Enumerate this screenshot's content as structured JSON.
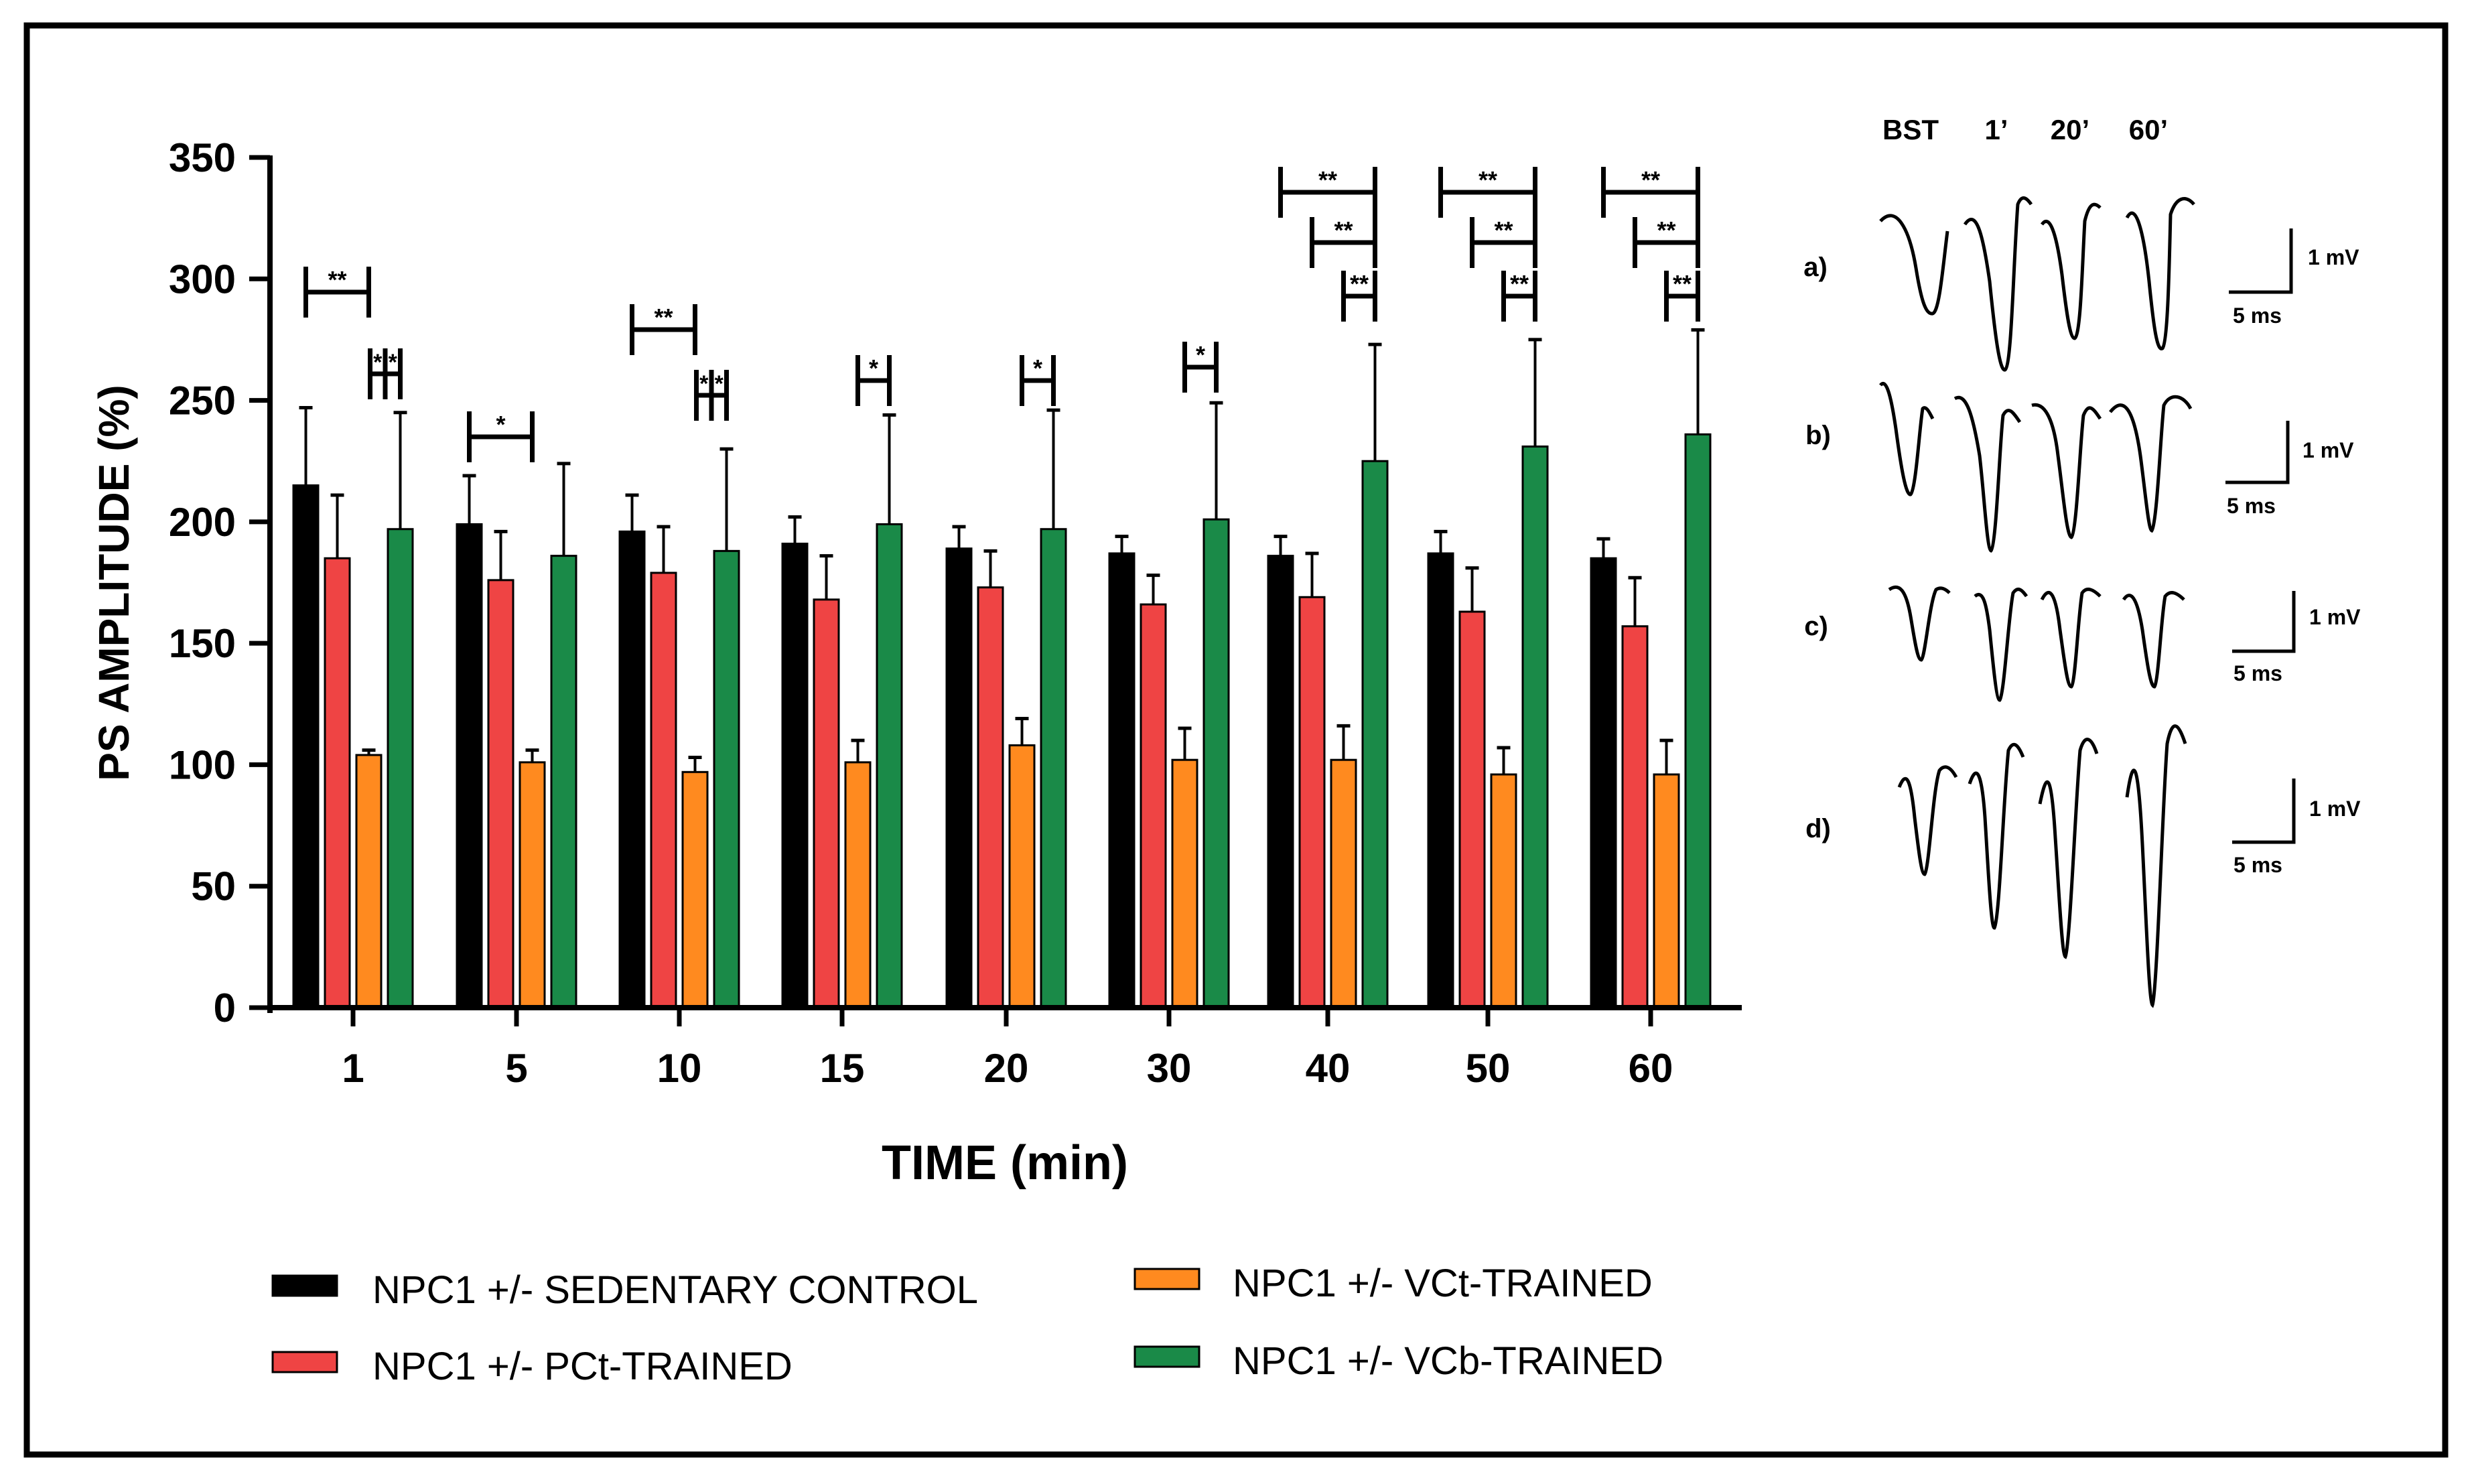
{
  "chart_data": {
    "type": "bar",
    "xlabel": "TIME (min)",
    "ylabel": "PS AMPLITUDE (%)",
    "ylim": [
      0,
      350
    ],
    "yticks": [
      "0",
      "50",
      "100",
      "150",
      "200",
      "250",
      "300",
      "350"
    ],
    "categories": [
      "1",
      "5",
      "10",
      "15",
      "20",
      "30",
      "40",
      "50",
      "60"
    ],
    "series": [
      {
        "name": "NPC1 +/- SEDENTARY CONTROL",
        "color": "#000000",
        "values": [
          215,
          199,
          196,
          191,
          189,
          187,
          186,
          187,
          185
        ],
        "errors": [
          32,
          20,
          15,
          11,
          9,
          7,
          8,
          9,
          8
        ]
      },
      {
        "name": "NPC1 +/- PCt-TRAINED",
        "color": "#ef4444",
        "values": [
          185,
          176,
          179,
          168,
          173,
          166,
          169,
          163,
          157
        ],
        "errors": [
          26,
          20,
          19,
          18,
          15,
          12,
          18,
          18,
          20
        ]
      },
      {
        "name": "NPC1 +/- VCt-TRAINED",
        "color": "#ff8a1f",
        "values": [
          104,
          101,
          97,
          101,
          108,
          102,
          102,
          96,
          96
        ],
        "errors": [
          2,
          5,
          6,
          9,
          11,
          13,
          14,
          11,
          14
        ]
      },
      {
        "name": "NPC1 +/- VCb-TRAINED",
        "color": "#1a8a48",
        "values": [
          197,
          186,
          188,
          199,
          197,
          201,
          225,
          231,
          236
        ],
        "errors": [
          48,
          38,
          42,
          45,
          49,
          48,
          48,
          44,
          43
        ]
      }
    ],
    "significance": [
      {
        "cat": 0,
        "from": 0,
        "to": 2,
        "label": "**",
        "level": 0
      },
      {
        "cat": 0,
        "from": 2,
        "to": 3,
        "label": "*",
        "level": 1,
        "split": true
      },
      {
        "cat": 1,
        "from": 0,
        "to": 2,
        "label": "*",
        "level": 0
      },
      {
        "cat": 2,
        "from": 0,
        "to": 2,
        "label": "**",
        "level": 0
      },
      {
        "cat": 2,
        "from": 2,
        "to": 3,
        "label": "*",
        "level": 1,
        "split": true
      },
      {
        "cat": 3,
        "from": 2,
        "to": 3,
        "label": "*",
        "level": 1
      },
      {
        "cat": 4,
        "from": 2,
        "to": 3,
        "label": "*",
        "level": 1
      },
      {
        "cat": 5,
        "from": 2,
        "to": 3,
        "label": "*",
        "level": 1
      },
      {
        "cat": 6,
        "from": 0,
        "to": 3,
        "label": "**",
        "level": 3
      },
      {
        "cat": 6,
        "from": 1,
        "to": 3,
        "label": "**",
        "level": 2
      },
      {
        "cat": 6,
        "from": 2,
        "to": 3,
        "label": "**",
        "level": 1
      },
      {
        "cat": 7,
        "from": 0,
        "to": 3,
        "label": "**",
        "level": 3
      },
      {
        "cat": 7,
        "from": 1,
        "to": 3,
        "label": "**",
        "level": 2
      },
      {
        "cat": 7,
        "from": 2,
        "to": 3,
        "label": "**",
        "level": 1
      },
      {
        "cat": 8,
        "from": 0,
        "to": 3,
        "label": "**",
        "level": 3
      },
      {
        "cat": 8,
        "from": 1,
        "to": 3,
        "label": "**",
        "level": 2
      },
      {
        "cat": 8,
        "from": 2,
        "to": 3,
        "label": "**",
        "level": 1
      }
    ],
    "legend": [
      "NPC1 +/- SEDENTARY CONTROL",
      "NPC1 +/- PCt-TRAINED",
      "NPC1 +/- VCt-TRAINED",
      "NPC1 +/- VCb-TRAINED"
    ]
  },
  "traces": {
    "column_headers": [
      "BST",
      "1’",
      "20’",
      "60’"
    ],
    "rows": [
      {
        "label": "a)",
        "amplitude": "1 mV",
        "time": "5 ms"
      },
      {
        "label": "b)",
        "amplitude": "1 mV",
        "time": "5 ms"
      },
      {
        "label": "c)",
        "amplitude": "1 mV",
        "time": "5 ms"
      },
      {
        "label": "d)",
        "amplitude": "1 mV",
        "time": "5 ms"
      }
    ]
  }
}
